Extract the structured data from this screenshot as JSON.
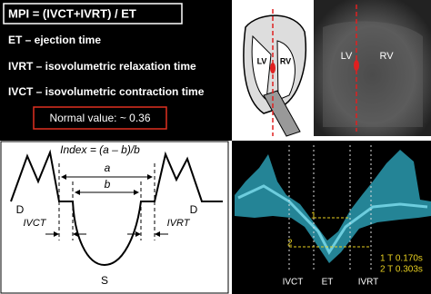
{
  "formula_panel": {
    "formula": "MPI = (IVCT+IVRT) / ET",
    "definitions": [
      "ET – ejection time",
      "IVRT – isovolumetric relaxation time",
      "IVCT – isovolumetric contraction time"
    ],
    "normal_value": "Normal value: ~ 0.36"
  },
  "heart_diagram": {
    "labels": [
      "LV",
      "RV"
    ]
  },
  "echo_image": {
    "labels": [
      "LV",
      "RV"
    ]
  },
  "index_diagram": {
    "formula": "Index = (a – b)/b",
    "a": "a",
    "b": "b",
    "left_wave": "D",
    "right_wave": "D",
    "left_interval": "IVCT",
    "right_interval": "IVRT",
    "systolic_wave": "S"
  },
  "doppler": {
    "intervals": [
      "IVCT",
      "ET",
      "IVRT"
    ],
    "markers": [
      "1",
      "2"
    ],
    "measurements": [
      "1  T 0.170s",
      "2  T 0.303s"
    ]
  }
}
